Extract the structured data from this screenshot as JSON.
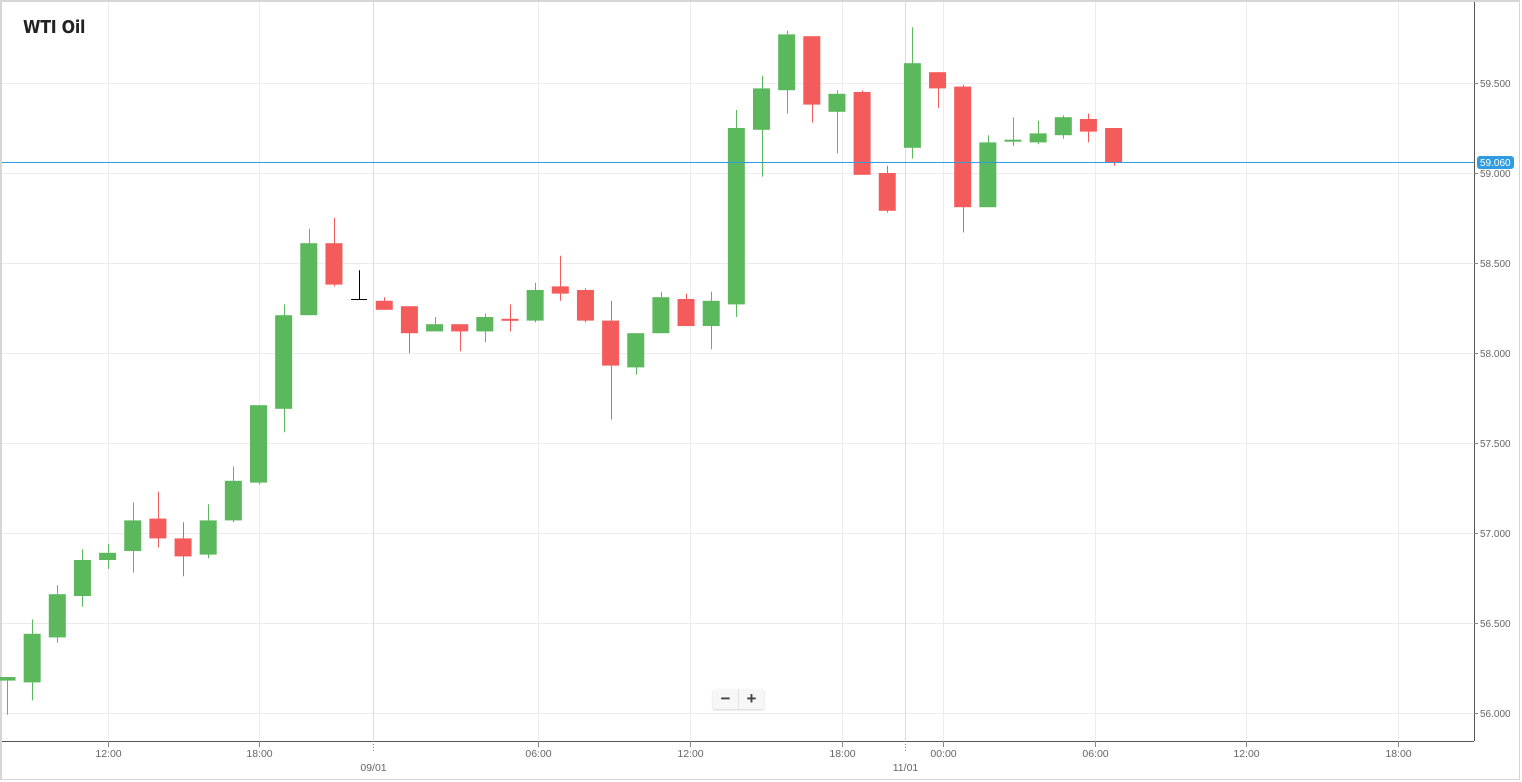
{
  "header": {
    "title": "WTI Oil"
  },
  "zoom_controls": {
    "minus_label": "−",
    "plus_label": "+"
  },
  "current_price": {
    "label": "59.060",
    "value": 59.06,
    "color": "#2f9be0"
  },
  "colors": {
    "up": "#5cb85c",
    "down": "#f45b5b",
    "doji": "#000000",
    "grid": "#ececec",
    "axis": "#555555",
    "tick_text": "#666666"
  },
  "chart_data": {
    "type": "candlestick",
    "title": "WTI Oil",
    "xlabel": "",
    "ylabel": "",
    "ylim": [
      55.85,
      59.93
    ],
    "grid": true,
    "legend": "none",
    "interval": "1h",
    "y_ticks": [
      "56.000",
      "56.500",
      "57.000",
      "57.500",
      "58.000",
      "58.500",
      "59.000",
      "59.500"
    ],
    "y_tick_values": [
      56.0,
      56.5,
      57.0,
      57.5,
      58.0,
      58.5,
      59.0,
      59.5
    ],
    "x_ticks": [
      {
        "label": "12:00",
        "sub": ""
      },
      {
        "label": "18:00",
        "sub": ""
      },
      {
        "label": "",
        "sub": "09/01"
      },
      {
        "label": "06:00",
        "sub": ""
      },
      {
        "label": "12:00",
        "sub": ""
      },
      {
        "label": "18:00",
        "sub": ""
      },
      {
        "label": "",
        "sub": "11/01"
      },
      {
        "label": "00:00",
        "sub": ""
      },
      {
        "label": "06:00",
        "sub": ""
      },
      {
        "label": "12:00",
        "sub": ""
      },
      {
        "label": "18:00",
        "sub": ""
      }
    ],
    "candles": [
      {
        "o": 56.18,
        "h": 56.2,
        "l": 55.99,
        "c": 56.2
      },
      {
        "o": 56.17,
        "h": 56.52,
        "l": 56.07,
        "c": 56.44
      },
      {
        "o": 56.42,
        "h": 56.71,
        "l": 56.39,
        "c": 56.66
      },
      {
        "o": 56.65,
        "h": 56.91,
        "l": 56.59,
        "c": 56.85
      },
      {
        "o": 56.85,
        "h": 56.94,
        "l": 56.8,
        "c": 56.89
      },
      {
        "o": 56.9,
        "h": 57.17,
        "l": 56.78,
        "c": 57.07
      },
      {
        "o": 57.08,
        "h": 57.23,
        "l": 56.92,
        "c": 56.97
      },
      {
        "o": 56.97,
        "h": 57.06,
        "l": 56.76,
        "c": 56.87
      },
      {
        "o": 56.88,
        "h": 57.16,
        "l": 56.86,
        "c": 57.07
      },
      {
        "o": 57.07,
        "h": 57.37,
        "l": 57.06,
        "c": 57.29
      },
      {
        "o": 57.28,
        "h": 57.71,
        "l": 57.27,
        "c": 57.71
      },
      {
        "o": 57.69,
        "h": 58.27,
        "l": 57.56,
        "c": 58.21
      },
      {
        "o": 58.21,
        "h": 58.69,
        "l": 58.21,
        "c": 58.61
      },
      {
        "o": 58.61,
        "h": 58.75,
        "l": 58.37,
        "c": 58.38
      },
      {
        "o": 58.3,
        "h": 58.46,
        "l": 58.3,
        "c": 58.3
      },
      {
        "o": 58.29,
        "h": 58.31,
        "l": 58.24,
        "c": 58.24
      },
      {
        "o": 58.26,
        "h": 58.26,
        "l": 58.0,
        "c": 58.11
      },
      {
        "o": 58.12,
        "h": 58.2,
        "l": 58.12,
        "c": 58.16
      },
      {
        "o": 58.16,
        "h": 58.16,
        "l": 58.01,
        "c": 58.12
      },
      {
        "o": 58.12,
        "h": 58.22,
        "l": 58.06,
        "c": 58.2
      },
      {
        "o": 58.19,
        "h": 58.27,
        "l": 58.12,
        "c": 58.18
      },
      {
        "o": 58.18,
        "h": 58.39,
        "l": 58.17,
        "c": 58.35
      },
      {
        "o": 58.37,
        "h": 58.54,
        "l": 58.29,
        "c": 58.33
      },
      {
        "o": 58.35,
        "h": 58.36,
        "l": 58.17,
        "c": 58.18
      },
      {
        "o": 58.18,
        "h": 58.29,
        "l": 57.63,
        "c": 57.93
      },
      {
        "o": 57.92,
        "h": 58.11,
        "l": 57.88,
        "c": 58.11
      },
      {
        "o": 58.11,
        "h": 58.34,
        "l": 58.11,
        "c": 58.31
      },
      {
        "o": 58.3,
        "h": 58.33,
        "l": 58.15,
        "c": 58.15
      },
      {
        "o": 58.15,
        "h": 58.34,
        "l": 58.02,
        "c": 58.29
      },
      {
        "o": 58.27,
        "h": 59.35,
        "l": 58.2,
        "c": 59.25
      },
      {
        "o": 59.24,
        "h": 59.54,
        "l": 58.98,
        "c": 59.47
      },
      {
        "o": 59.46,
        "h": 59.79,
        "l": 59.33,
        "c": 59.77
      },
      {
        "o": 59.76,
        "h": 59.76,
        "l": 59.28,
        "c": 59.38
      },
      {
        "o": 59.34,
        "h": 59.46,
        "l": 59.11,
        "c": 59.44
      },
      {
        "o": 59.45,
        "h": 59.46,
        "l": 58.99,
        "c": 58.99
      },
      {
        "o": 59.0,
        "h": 59.04,
        "l": 58.78,
        "c": 58.79
      },
      {
        "o": 59.14,
        "h": 59.81,
        "l": 59.08,
        "c": 59.61
      },
      {
        "o": 59.56,
        "h": 59.56,
        "l": 59.36,
        "c": 59.47
      },
      {
        "o": 59.48,
        "h": 59.49,
        "l": 58.67,
        "c": 58.81
      },
      {
        "o": 58.81,
        "h": 59.21,
        "l": 58.81,
        "c": 59.17
      },
      {
        "o": 59.175,
        "h": 59.31,
        "l": 59.15,
        "c": 59.185
      },
      {
        "o": 59.17,
        "h": 59.29,
        "l": 59.16,
        "c": 59.22
      },
      {
        "o": 59.21,
        "h": 59.32,
        "l": 59.19,
        "c": 59.31
      },
      {
        "o": 59.3,
        "h": 59.33,
        "l": 59.17,
        "c": 59.23
      },
      {
        "o": 59.25,
        "h": 59.25,
        "l": 59.04,
        "c": 59.06
      }
    ]
  }
}
